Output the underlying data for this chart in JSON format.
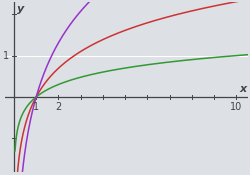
{
  "x_min": 0.05,
  "x_max": 10.5,
  "y_min": -1.8,
  "y_max": 2.3,
  "curves": [
    {
      "base": 2.718281828,
      "color": "#cc3333",
      "lw": 1.1
    },
    {
      "base": 10.0,
      "color": "#339933",
      "lw": 1.1
    },
    {
      "base": 1.7,
      "color": "#9933cc",
      "lw": 1.1
    }
  ],
  "x_ticks_minor": [
    1,
    2,
    3,
    4,
    5,
    6,
    7,
    8,
    9,
    10
  ],
  "x_ticks_labeled": [
    1,
    2,
    10
  ],
  "y_ticks_minor": [
    -1,
    0,
    1,
    2
  ],
  "y_ticks_labeled": [
    1
  ],
  "xlabel": "x",
  "ylabel": "y",
  "bg_color": "#dde0e5",
  "axes_color": "#444444",
  "grid_y1_color": "#ffffff",
  "xlabel_fontsize": 8,
  "ylabel_fontsize": 8,
  "tick_label_fontsize": 7,
  "figsize": [
    2.5,
    1.75
  ],
  "dpi": 100
}
